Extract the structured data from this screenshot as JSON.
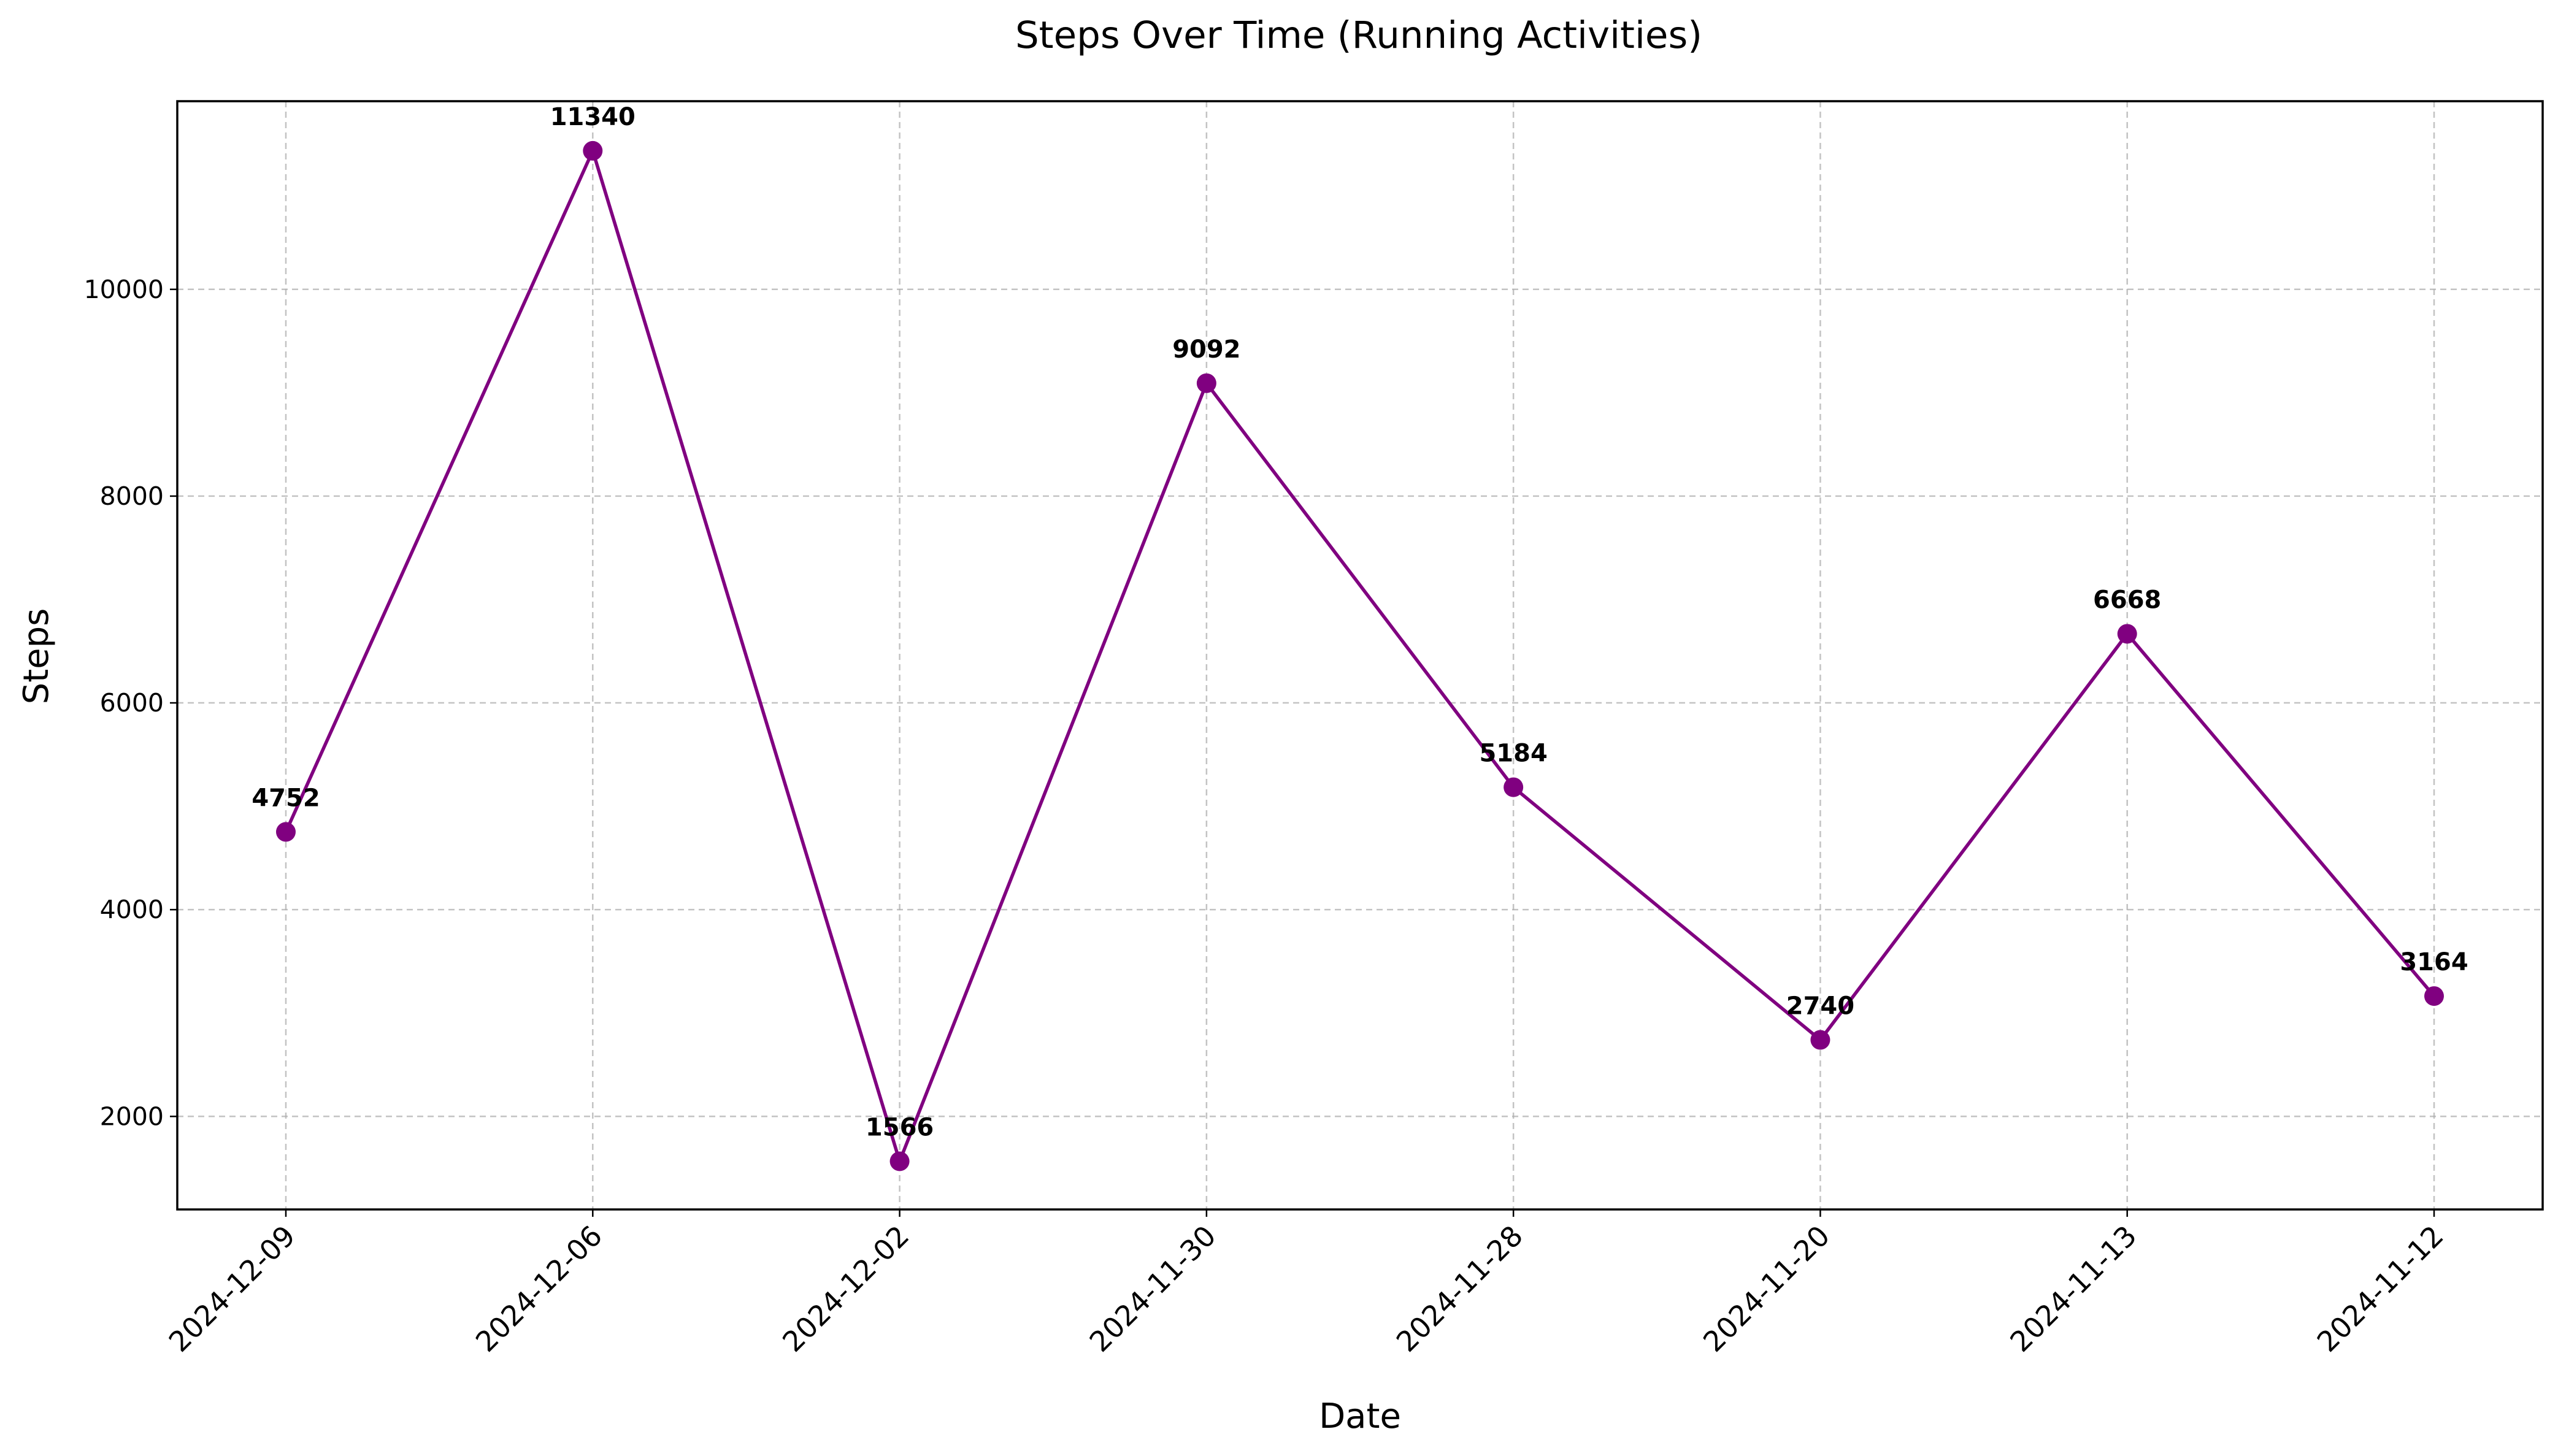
{
  "chart_data": {
    "type": "line",
    "title": "Steps Over Time (Running Activities)",
    "xlabel": "Date",
    "ylabel": "Steps",
    "categories": [
      "2024-12-09",
      "2024-12-06",
      "2024-12-02",
      "2024-11-30",
      "2024-11-28",
      "2024-11-20",
      "2024-11-13",
      "2024-11-12"
    ],
    "values": [
      4752,
      11340,
      1566,
      9092,
      5184,
      2740,
      6668,
      3164
    ],
    "ylim": [
      1100,
      11820
    ],
    "yticks": [
      2000,
      4000,
      6000,
      8000,
      10000
    ],
    "ytick_labels": [
      "2000",
      "4000",
      "6000",
      "8000",
      "10000"
    ],
    "grid": true,
    "x_tick_rotation": "45 degrees",
    "marker": "circle",
    "data_labels": true,
    "colors": {
      "line": "#800080",
      "marker": "#800080"
    }
  }
}
